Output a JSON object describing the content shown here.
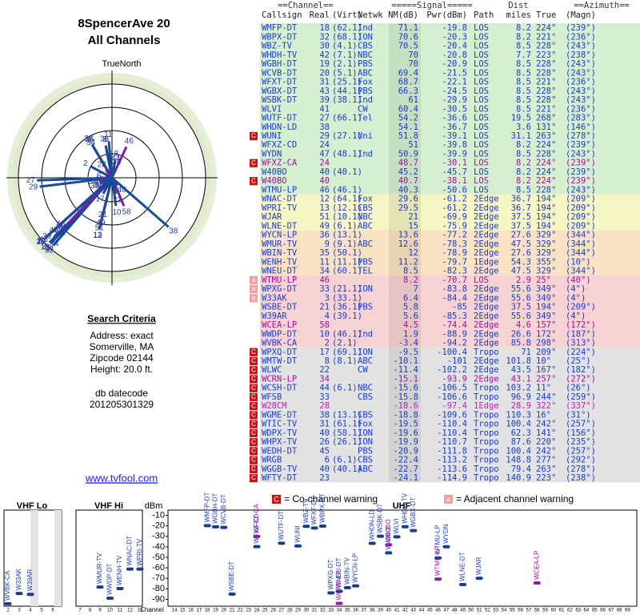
{
  "header": {
    "title": "8SpencerAve 20",
    "subtitle": "All Channels",
    "north": "TrueNorth"
  },
  "criteria": {
    "title": "Search Criteria",
    "lines": [
      "Address: exact",
      "Somerville, MA",
      "Zipcode 02144",
      "Height: 20.0 ft."
    ],
    "db_label": "db datecode",
    "db_code": "201205301329",
    "link": "www.tvfool.com"
  },
  "table": {
    "group_headers": [
      "==Channel==",
      "=====Signal=====",
      "Dist",
      "==Azimuth=="
    ],
    "columns": [
      "Callsign",
      "Real",
      "(Virt)",
      "Netwk",
      "NM(dB)",
      "Pwr(dBm)",
      "Path",
      "miles",
      "True",
      "(Magn)"
    ],
    "rows": [
      {
        "callsign": "WMFP-DT",
        "real": 18,
        "virt": "(62.1)",
        "netwk": "Ind",
        "nm": 71.1,
        "pwr": -19.8,
        "path": "LOS",
        "dist": 8.2,
        "true": "224°",
        "magn": "(239°)",
        "bg": "#d6efd0",
        "fg": "#1a3cc8"
      },
      {
        "callsign": "WBPX-DT",
        "real": 32,
        "virt": "(68.1)",
        "netwk": "ION",
        "nm": 70.6,
        "pwr": -20.3,
        "path": "LOS",
        "dist": 8.2,
        "true": "221°",
        "magn": "(236°)",
        "bg": "#d6efd0",
        "fg": "#1a3cc8"
      },
      {
        "callsign": "WBZ-TV",
        "real": 30,
        "virt": "(4.1)",
        "netwk": "CBS",
        "nm": 70.5,
        "pwr": -20.4,
        "path": "LOS",
        "dist": 8.5,
        "true": "228°",
        "magn": "(243°)",
        "bg": "#d6efd0",
        "fg": "#1a3cc8"
      },
      {
        "callsign": "WHDH-TV",
        "real": 42,
        "virt": "(7.1)",
        "netwk": "NBC",
        "nm": 70.0,
        "pwr": -20.8,
        "path": "LOS",
        "dist": 7.7,
        "true": "223°",
        "magn": "(238°)",
        "bg": "#d6efd0",
        "fg": "#1a3cc8"
      },
      {
        "callsign": "WGBH-DT",
        "real": 19,
        "virt": "(2.1)",
        "netwk": "PBS",
        "nm": 70.0,
        "pwr": -20.9,
        "path": "LOS",
        "dist": 8.5,
        "true": "228°",
        "magn": "(243°)",
        "bg": "#d6efd0",
        "fg": "#1a3cc8"
      },
      {
        "callsign": "WCVB-DT",
        "real": 20,
        "virt": "(5.1)",
        "netwk": "ABC",
        "nm": 69.4,
        "pwr": -21.5,
        "path": "LOS",
        "dist": 8.5,
        "true": "228°",
        "magn": "(243°)",
        "bg": "#d6efd0",
        "fg": "#1a3cc8"
      },
      {
        "callsign": "WFXT-DT",
        "real": 31,
        "virt": "(25.1)",
        "netwk": "Fox",
        "nm": 68.7,
        "pwr": -22.1,
        "path": "LOS",
        "dist": 8.5,
        "true": "221°",
        "magn": "(236°)",
        "bg": "#d6efd0",
        "fg": "#1a3cc8"
      },
      {
        "callsign": "WGBX-DT",
        "real": 43,
        "virt": "(44.1)",
        "netwk": "PBS",
        "nm": 66.3,
        "pwr": -24.5,
        "path": "LOS",
        "dist": 8.5,
        "true": "228°",
        "magn": "(243°)",
        "bg": "#d6efd0",
        "fg": "#1a3cc8"
      },
      {
        "callsign": "WSBK-DT",
        "real": 39,
        "virt": "(38.1)",
        "netwk": "Ind",
        "nm": 61.0,
        "pwr": -29.9,
        "path": "LOS",
        "dist": 8.5,
        "true": "228°",
        "magn": "(243°)",
        "bg": "#d6efd0",
        "fg": "#1a3cc8"
      },
      {
        "callsign": "WLVI",
        "real": 41,
        "netwk": "CW",
        "nm": 60.4,
        "pwr": -30.5,
        "path": "LOS",
        "dist": 8.5,
        "true": "221°",
        "magn": "(236°)",
        "bg": "#d6efd0",
        "fg": "#1a3cc8"
      },
      {
        "callsign": "WUTF-DT",
        "real": 27,
        "virt": "(66.1)",
        "netwk": "Tel",
        "nm": 54.2,
        "pwr": -36.6,
        "path": "LOS",
        "dist": 19.5,
        "true": "268°",
        "magn": "(283°)",
        "bg": "#d6efd0",
        "fg": "#1a3cc8"
      },
      {
        "callsign": "WHDN-LD",
        "real": 38,
        "nm": 54.1,
        "pwr": -36.7,
        "path": "LOS",
        "dist": 3.6,
        "true": "131°",
        "magn": "(146°)",
        "bg": "#d6efd0",
        "fg": "#1a3cc8"
      },
      {
        "callsign": "WUNI",
        "real": 29,
        "virt": "(27.1)",
        "netwk": "Uni",
        "nm": 51.8,
        "pwr": -39.1,
        "path": "LOS",
        "dist": 31.1,
        "true": "263°",
        "magn": "(278°)",
        "bg": "#d6efd0",
        "fg": "#1a3cc8",
        "warn": "C"
      },
      {
        "callsign": "WFXZ-CD",
        "real": 24,
        "nm": 51.0,
        "pwr": -39.8,
        "path": "LOS",
        "dist": 8.2,
        "true": "224°",
        "magn": "(239°)",
        "bg": "#d6efd0",
        "fg": "#1a3cc8"
      },
      {
        "callsign": "WYDN",
        "real": 47,
        "virt": "(48.1)",
        "netwk": "Ind",
        "nm": 50.9,
        "pwr": -39.9,
        "path": "LOS",
        "dist": 8.5,
        "true": "228°",
        "magn": "(243°)",
        "bg": "#d6efd0",
        "fg": "#1a3cc8"
      },
      {
        "callsign": "WFXZ-CA",
        "real": 24,
        "nm": 48.7,
        "pwr": -30.1,
        "path": "LOS",
        "dist": 8.2,
        "true": "224°",
        "magn": "(239°)",
        "bg": "#d6efd0",
        "fg": "#a010a0",
        "warn": "C"
      },
      {
        "callsign": "W40BO",
        "real": 40,
        "virt": "(40.1)",
        "nm": 45.2,
        "pwr": -45.7,
        "path": "LOS",
        "dist": 8.2,
        "true": "224°",
        "magn": "(239°)",
        "bg": "#d6efd0",
        "fg": "#1a3cc8"
      },
      {
        "callsign": "W40BO",
        "real": 40,
        "nm": 40.7,
        "pwr": -38.1,
        "path": "LOS",
        "dist": 8.2,
        "true": "224°",
        "magn": "(239°)",
        "bg": "#d6efd0",
        "fg": "#a010a0",
        "warn": "C"
      },
      {
        "callsign": "WTMU-LP",
        "real": 46,
        "virt": "(46.1)",
        "nm": 40.3,
        "pwr": -50.6,
        "path": "LOS",
        "dist": 8.5,
        "true": "228°",
        "magn": "(243°)",
        "bg": "#d6efd0",
        "fg": "#1a3cc8"
      },
      {
        "callsign": "WNAC-DT",
        "real": 12,
        "virt": "(64.1)",
        "netwk": "Fox",
        "nm": 29.6,
        "pwr": -61.2,
        "path": "2Edge",
        "dist": 36.7,
        "true": "194°",
        "magn": "(209°)",
        "bg": "#f6f5c4",
        "fg": "#1a3cc8"
      },
      {
        "callsign": "WPRI-TV",
        "real": 13,
        "virt": "(12.1)",
        "netwk": "CBS",
        "nm": 29.5,
        "pwr": -61.2,
        "path": "2Edge",
        "dist": 36.7,
        "true": "194°",
        "magn": "(209°)",
        "bg": "#f6f5c4",
        "fg": "#1a3cc8"
      },
      {
        "callsign": "WJAR",
        "real": 51,
        "virt": "(10.1)",
        "netwk": "NBC",
        "nm": 21.0,
        "pwr": -69.9,
        "path": "2Edge",
        "dist": 37.5,
        "true": "194°",
        "magn": "(209°)",
        "bg": "#f6f5c4",
        "fg": "#1a3cc8"
      },
      {
        "callsign": "WLNE-DT",
        "real": 49,
        "virt": "(6.1)",
        "netwk": "ABC",
        "nm": 15.0,
        "pwr": -75.9,
        "path": "2Edge",
        "dist": 37.5,
        "true": "194°",
        "magn": "(209°)",
        "bg": "#f6f5c4",
        "fg": "#1a3cc8"
      },
      {
        "callsign": "WYCN-LP",
        "real": 36,
        "virt": "(13.1)",
        "nm": 13.6,
        "pwr": -77.2,
        "path": "2Edge",
        "dist": 27.6,
        "true": "329°",
        "magn": "(344°)",
        "bg": "#f9e2c4",
        "fg": "#1a3cc8"
      },
      {
        "callsign": "WMUR-TV",
        "real": 9,
        "virt": "(9.1)",
        "netwk": "ABC",
        "nm": 12.6,
        "pwr": -78.3,
        "path": "2Edge",
        "dist": 47.5,
        "true": "329°",
        "magn": "(344°)",
        "bg": "#f9e2c4",
        "fg": "#1a3cc8"
      },
      {
        "callsign": "WBIN-TV",
        "real": 35,
        "virt": "(50.1)",
        "nm": 12.0,
        "pwr": -78.9,
        "path": "2Edge",
        "dist": 27.6,
        "true": "329°",
        "magn": "(344°)",
        "bg": "#f9e2c4",
        "fg": "#1a3cc8"
      },
      {
        "callsign": "WENH-TV",
        "real": 11,
        "virt": "(11.1)",
        "netwk": "PBS",
        "nm": 11.2,
        "pwr": -79.7,
        "path": "1Edge",
        "dist": 54.3,
        "true": "355°",
        "magn": "(10°)",
        "bg": "#f9e2c4",
        "fg": "#1a3cc8"
      },
      {
        "callsign": "WNEU-DT",
        "real": 34,
        "virt": "(60.1)",
        "netwk": "TEL",
        "nm": 8.5,
        "pwr": -82.3,
        "path": "2Edge",
        "dist": 47.5,
        "true": "329°",
        "magn": "(344°)",
        "bg": "#f9e2c4",
        "fg": "#1a3cc8"
      },
      {
        "callsign": "WTMU-LP",
        "real": 46,
        "nm": 8.2,
        "pwr": -70.7,
        "path": "LOS",
        "dist": 2.9,
        "true": "25°",
        "magn": "(40°)",
        "bg": "#f7d2d2",
        "fg": "#a010a0",
        "warn": "a"
      },
      {
        "callsign": "WPXG-DT",
        "real": 33,
        "virt": "(21.1)",
        "netwk": "ION",
        "nm": 7.0,
        "pwr": -83.8,
        "path": "2Edge",
        "dist": 55.6,
        "true": "349°",
        "magn": "(4°)",
        "bg": "#f7d2d2",
        "fg": "#1a3cc8",
        "warn": "a"
      },
      {
        "callsign": "W33AK",
        "real": 3,
        "virt": "(33.1)",
        "nm": 6.4,
        "pwr": -84.4,
        "path": "2Edge",
        "dist": 55.6,
        "true": "349°",
        "magn": "(4°)",
        "bg": "#f7d2d2",
        "fg": "#1a3cc8",
        "warn": "a"
      },
      {
        "callsign": "WSBE-DT",
        "real": 21,
        "virt": "(36.1)",
        "netwk": "PBS",
        "nm": 5.8,
        "pwr": -85.0,
        "path": "2Edge",
        "dist": 37.5,
        "true": "194°",
        "magn": "(209°)",
        "bg": "#f7d2d2",
        "fg": "#1a3cc8"
      },
      {
        "callsign": "W39AR",
        "real": 4,
        "virt": "(39.1)",
        "nm": 5.6,
        "pwr": -85.3,
        "path": "2Edge",
        "dist": 55.6,
        "true": "349°",
        "magn": "(4°)",
        "bg": "#f7d2d2",
        "fg": "#1a3cc8"
      },
      {
        "callsign": "WCEA-LP",
        "real": 58,
        "nm": 4.5,
        "pwr": -74.4,
        "path": "2Edge",
        "dist": 4.6,
        "true": "157°",
        "magn": "(172°)",
        "bg": "#f7d2d2",
        "fg": "#a010a0"
      },
      {
        "callsign": "WWDP-DT",
        "real": 10,
        "virt": "(46.1)",
        "netwk": "Ind",
        "nm": 1.9,
        "pwr": -88.9,
        "path": "2Edge",
        "dist": 26.6,
        "true": "172°",
        "magn": "(187°)",
        "bg": "#f7d2d2",
        "fg": "#1a3cc8"
      },
      {
        "callsign": "WVBK-CA",
        "real": 2,
        "virt": "(2.1)",
        "nm": -3.4,
        "pwr": -94.2,
        "path": "2Edge",
        "dist": 85.8,
        "true": "298°",
        "magn": "(313°)",
        "bg": "#f7d2d2",
        "fg": "#1a3cc8"
      },
      {
        "callsign": "WPXQ-DT",
        "real": 17,
        "virt": "(69.1)",
        "netwk": "ION",
        "nm": -9.5,
        "pwr": -100.4,
        "path": "Tropo",
        "dist": 71.0,
        "true": "209°",
        "magn": "(224°)",
        "bg": "#e2e2e2",
        "fg": "#1a3cc8",
        "warn": "C"
      },
      {
        "callsign": "WMTW-DT",
        "real": 8,
        "virt": "(8.1)",
        "netwk": "ABC",
        "nm": -10.1,
        "pwr": -101.0,
        "path": "2Edge",
        "dist": 101.8,
        "true": "10°",
        "magn": "(25°)",
        "bg": "#e2e2e2",
        "fg": "#1a3cc8",
        "warn": "C"
      },
      {
        "callsign": "WLWC",
        "real": 22,
        "netwk": "CW",
        "nm": -11.4,
        "pwr": -102.2,
        "path": "2Edge",
        "dist": 43.5,
        "true": "167°",
        "magn": "(182°)",
        "bg": "#e2e2e2",
        "fg": "#1a3cc8",
        "warn": "C"
      },
      {
        "callsign": "WCRN-LP",
        "real": 34,
        "nm": -15.1,
        "pwr": -93.9,
        "path": "2Edge",
        "dist": 43.1,
        "true": "257°",
        "magn": "(272°)",
        "bg": "#e2e2e2",
        "fg": "#a010a0",
        "warn": "C"
      },
      {
        "callsign": "WCSH-DT",
        "real": 44,
        "virt": "(6.1)",
        "netwk": "NBC",
        "nm": -15.6,
        "pwr": -106.5,
        "path": "Tropo",
        "dist": 103.2,
        "true": "11°",
        "magn": "(26°)",
        "bg": "#e2e2e2",
        "fg": "#1a3cc8",
        "warn": "C"
      },
      {
        "callsign": "WFSB",
        "real": 33,
        "netwk": "CBS",
        "nm": -15.8,
        "pwr": -106.6,
        "path": "Tropo",
        "dist": 96.9,
        "true": "244°",
        "magn": "(259°)",
        "bg": "#e2e2e2",
        "fg": "#1a3cc8",
        "warn": "C"
      },
      {
        "callsign": "W28CM",
        "real": 28,
        "nm": -18.6,
        "pwr": -97.4,
        "path": "1Edge",
        "dist": 28.9,
        "true": "322°",
        "magn": "(337°)",
        "bg": "#e2e2e2",
        "fg": "#c020c0",
        "warn": "C"
      },
      {
        "callsign": "WGME-DT",
        "real": 38,
        "virt": "(13.1)",
        "netwk": "CBS",
        "nm": -18.8,
        "pwr": -109.6,
        "path": "Tropo",
        "dist": 110.3,
        "true": "16°",
        "magn": "(31°)",
        "bg": "#e2e2e2",
        "fg": "#1a3cc8",
        "warn": "C"
      },
      {
        "callsign": "WTIC-TV",
        "real": 31,
        "virt": "(61.1)",
        "netwk": "Fox",
        "nm": -19.5,
        "pwr": -110.4,
        "path": "Tropo",
        "dist": 100.4,
        "true": "242°",
        "magn": "(257°)",
        "bg": "#e2e2e2",
        "fg": "#1a3cc8",
        "warn": "C"
      },
      {
        "callsign": "WDPX-TV",
        "real": 40,
        "virt": "(58.1)",
        "netwk": "ION",
        "nm": -19.6,
        "pwr": -110.4,
        "path": "Tropo",
        "dist": 62.3,
        "true": "141°",
        "magn": "(156°)",
        "bg": "#e2e2e2",
        "fg": "#1a3cc8",
        "warn": "C"
      },
      {
        "callsign": "WHPX-TV",
        "real": 26,
        "virt": "(26.1)",
        "netwk": "ION",
        "nm": -19.9,
        "pwr": -110.7,
        "path": "Tropo",
        "dist": 87.6,
        "true": "220°",
        "magn": "(235°)",
        "bg": "#e2e2e2",
        "fg": "#1a3cc8",
        "warn": "C"
      },
      {
        "callsign": "WEDH-DT",
        "real": 45,
        "netwk": "PBS",
        "nm": -20.9,
        "pwr": -111.8,
        "path": "Tropo",
        "dist": 100.4,
        "true": "242°",
        "magn": "(257°)",
        "bg": "#e2e2e2",
        "fg": "#1a3cc8",
        "warn": "C"
      },
      {
        "callsign": "WRGB",
        "real": 6,
        "virt": "(6.1)",
        "netwk": "CBS",
        "nm": -22.4,
        "pwr": -113.2,
        "path": "Tropo",
        "dist": 148.8,
        "true": "277°",
        "magn": "(292°)",
        "bg": "#e2e2e2",
        "fg": "#1a3cc8",
        "warn": "C"
      },
      {
        "callsign": "WGGB-TV",
        "real": 40,
        "virt": "(40.1)",
        "netwk": "ABC",
        "nm": -22.7,
        "pwr": -113.6,
        "path": "Tropo",
        "dist": 79.4,
        "true": "263°",
        "magn": "(278°)",
        "bg": "#e2e2e2",
        "fg": "#1a3cc8",
        "warn": "C"
      },
      {
        "callsign": "WFTY-DT",
        "real": 23,
        "nm": -24.1,
        "pwr": -114.9,
        "path": "Tropo",
        "dist": 140.9,
        "true": "223°",
        "magn": "(238°)",
        "bg": "#e2e2e2",
        "fg": "#1a3cc8",
        "warn": "C"
      }
    ]
  },
  "spectrum": {
    "bands": [
      "VHF Lo",
      "VHF Hi",
      "UHF"
    ],
    "y_label": "dBm",
    "x_label": "Channel",
    "ylim": [
      -95,
      -5
    ],
    "yticks": [
      -10,
      -20,
      -30,
      -40,
      -50,
      -60,
      -70,
      -80,
      -90
    ],
    "xticks": [
      2,
      3,
      4,
      5,
      6,
      7,
      8,
      9,
      10,
      11,
      12,
      13,
      14,
      15,
      16,
      17,
      18,
      19,
      20,
      21,
      22,
      23,
      24,
      25,
      26,
      27,
      28,
      29,
      30,
      31,
      32,
      33,
      34,
      35,
      36,
      37,
      38,
      39,
      40,
      41,
      42,
      43,
      44,
      45,
      46,
      47,
      48,
      49,
      50,
      51,
      52,
      53,
      54,
      55,
      56,
      57,
      58,
      59,
      60,
      61,
      62,
      63,
      64,
      65,
      66,
      67,
      68,
      69
    ],
    "legend": [
      {
        "mark": "C",
        "text": "= Co-channel warning"
      },
      {
        "mark": "a",
        "text": "= Adjacent channel warning"
      }
    ]
  }
}
